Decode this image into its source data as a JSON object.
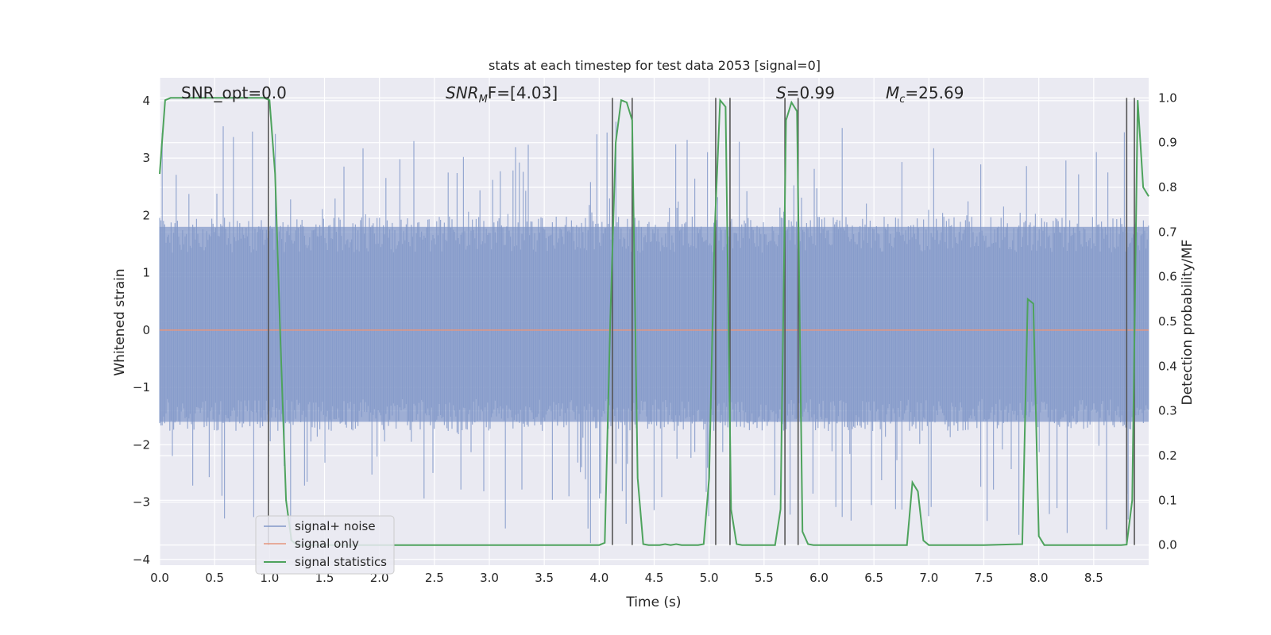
{
  "chart_data": {
    "type": "line",
    "title": "stats at each timestep for test data 2053 [signal=0]",
    "xlabel": "Time (s)",
    "ylabel": "Whitened strain",
    "y2label": "Detection probability/MF",
    "xlim": [
      0,
      9
    ],
    "ylim": [
      -4.1,
      4.4
    ],
    "y2lim": [
      -0.045,
      1.045
    ],
    "xticks": [
      "0.0",
      "0.5",
      "1.0",
      "1.5",
      "2.0",
      "2.5",
      "3.0",
      "3.5",
      "4.0",
      "4.5",
      "5.0",
      "5.5",
      "6.0",
      "6.5",
      "7.0",
      "7.5",
      "8.0",
      "8.5"
    ],
    "yticks": [
      "4",
      "3",
      "2",
      "1",
      "0",
      "−1",
      "−2",
      "−3",
      "−4"
    ],
    "y2ticks": [
      "1.0",
      "0.9",
      "0.8",
      "0.7",
      "0.6",
      "0.5",
      "0.4",
      "0.3",
      "0.2",
      "0.1",
      "0.0"
    ],
    "grid": true,
    "legend_placement": "lower-left",
    "annotations": {
      "snr_opt": "SNR_opt=0.0",
      "snr_mf_main": "SNR",
      "snr_mf_sub": "M",
      "snr_mf_rest": "F=[4.03]",
      "s_main": "S",
      "s_rest": "=0.99",
      "mc_main": "M",
      "mc_sub": "c",
      "mc_rest": "=25.69"
    },
    "series": [
      {
        "name": "signal+ noise",
        "color": "#8197c8",
        "description_kind": "noise",
        "envelope_typical": [
          -1.6,
          1.8
        ],
        "envelope_extreme": [
          -3.7,
          3.6
        ]
      },
      {
        "name": "signal only",
        "color": "#e5967e",
        "x": [
          0,
          9
        ],
        "y": [
          0,
          0
        ]
      },
      {
        "name": "signal statistics",
        "color": "#4ea35d",
        "axis": "right",
        "x": [
          0.0,
          0.05,
          0.1,
          0.15,
          0.2,
          0.25,
          0.3,
          0.35,
          0.4,
          0.45,
          0.5,
          0.55,
          0.6,
          0.65,
          0.7,
          0.75,
          0.8,
          0.85,
          0.9,
          0.95,
          1.0,
          1.05,
          1.1,
          1.15,
          1.2,
          1.25,
          1.5,
          2.0,
          2.5,
          3.0,
          3.5,
          4.0,
          4.05,
          4.1,
          4.15,
          4.2,
          4.25,
          4.3,
          4.35,
          4.4,
          4.45,
          4.5,
          4.55,
          4.6,
          4.65,
          4.7,
          4.75,
          4.8,
          4.85,
          4.9,
          4.95,
          5.0,
          5.05,
          5.1,
          5.15,
          5.2,
          5.25,
          5.3,
          5.35,
          5.4,
          5.45,
          5.5,
          5.55,
          5.6,
          5.65,
          5.7,
          5.75,
          5.8,
          5.85,
          5.9,
          5.95,
          6.0,
          6.5,
          6.8,
          6.85,
          6.9,
          6.95,
          7.0,
          7.05,
          7.5,
          7.85,
          7.9,
          7.95,
          8.0,
          8.05,
          8.1,
          8.5,
          8.75,
          8.8,
          8.85,
          8.9,
          8.95,
          9.0
        ],
        "y": [
          0.83,
          0.995,
          1.0,
          1.0,
          1.0,
          1.0,
          1.0,
          1.0,
          1.0,
          1.0,
          1.0,
          1.0,
          1.0,
          1.0,
          1.0,
          1.0,
          1.0,
          1.0,
          1.0,
          1.0,
          0.995,
          0.83,
          0.45,
          0.1,
          0.01,
          0.0,
          0.0,
          0.0,
          0.0,
          0.0,
          0.0,
          0.0,
          0.005,
          0.5,
          0.9,
          0.995,
          0.99,
          0.95,
          0.15,
          0.002,
          0.0,
          0.0,
          0.0,
          0.002,
          0.0,
          0.002,
          0.0,
          0.0,
          0.0,
          0.0,
          0.002,
          0.15,
          0.7,
          0.995,
          0.98,
          0.08,
          0.002,
          0.0,
          0.0,
          0.0,
          0.0,
          0.0,
          0.0,
          0.0,
          0.08,
          0.95,
          0.99,
          0.97,
          0.03,
          0.002,
          0.0,
          0.0,
          0.0,
          0.0,
          0.14,
          0.12,
          0.01,
          0.0,
          0.0,
          0.0,
          0.002,
          0.55,
          0.54,
          0.02,
          0.0,
          0.0,
          0.0,
          0.0,
          0.001,
          0.1,
          0.995,
          0.8,
          0.78
        ]
      }
    ],
    "vertical_lines_x": [
      0.99,
      4.12,
      4.3,
      5.06,
      5.19,
      5.69,
      5.81,
      8.8,
      8.87
    ]
  }
}
